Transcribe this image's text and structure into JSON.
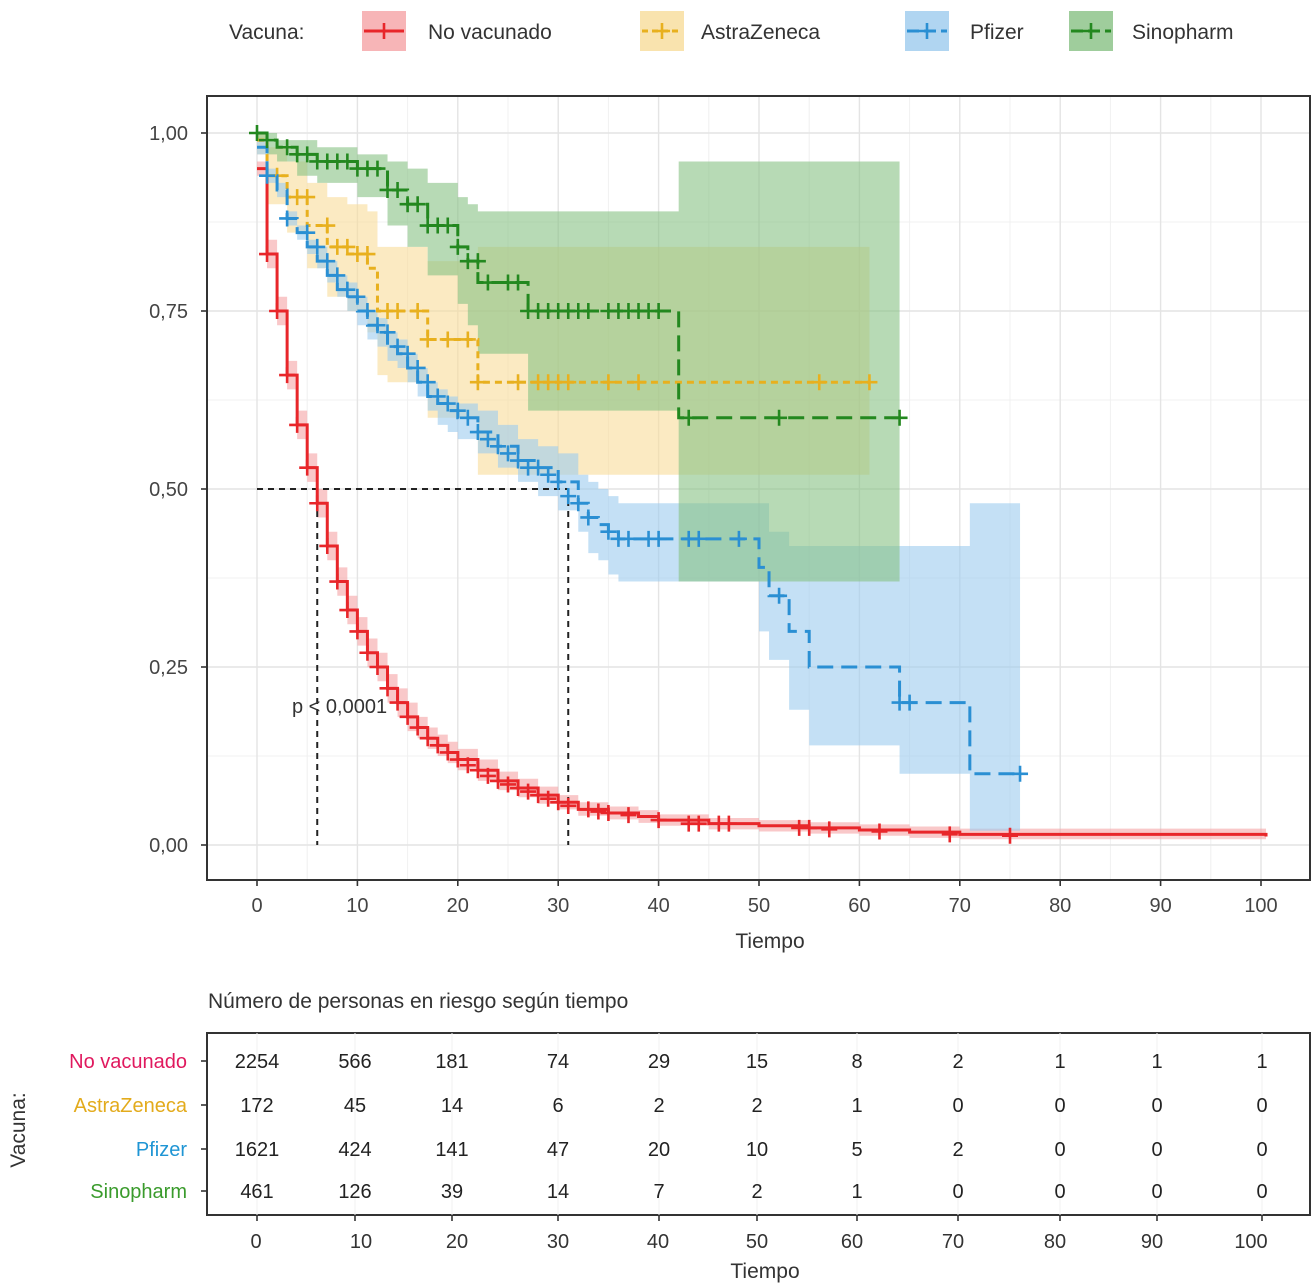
{
  "legend": {
    "title": "Vacuna:",
    "entries": [
      {
        "label": "No vacunado",
        "color": "#e8262a",
        "fill": "#f5a3a5",
        "dash": "solid"
      },
      {
        "label": "AstraZeneca",
        "color": "#e8b01e",
        "fill": "#f8dc9a",
        "dash": "short"
      },
      {
        "label": "Pfizer",
        "color": "#2a8fd3",
        "fill": "#9ccbee",
        "dash": "long"
      },
      {
        "label": "Sinopharm",
        "color": "#23881f",
        "fill": "#87c183",
        "dash": "long"
      }
    ]
  },
  "chart_data": {
    "type": "line",
    "subtype": "kaplan-meier",
    "xlabel": "Tiempo",
    "ylabel": "",
    "xlim": [
      -5,
      105
    ],
    "ylim": [
      -0.05,
      1.05
    ],
    "xticks": [
      0,
      10,
      20,
      30,
      40,
      50,
      60,
      70,
      80,
      90,
      100
    ],
    "yticks": [
      0,
      0.25,
      0.5,
      0.75,
      1.0
    ],
    "ytick_labels": [
      "0,00",
      "0,25",
      "0,50",
      "0,75",
      "1,00"
    ],
    "grid": true,
    "legend_position": "top",
    "annotation": "p < 0,0001",
    "median_lines": [
      {
        "series": "No vacunado",
        "x": 6,
        "y": 0.5
      },
      {
        "series": "Pfizer",
        "x": 31,
        "y": 0.5
      }
    ],
    "series": [
      {
        "name": "No vacunado",
        "x": [
          0,
          1,
          2,
          3,
          4,
          5,
          6,
          7,
          8,
          9,
          10,
          11,
          12,
          13,
          14,
          15,
          16,
          17,
          18,
          19,
          20,
          22,
          24,
          26,
          28,
          30,
          32,
          35,
          38,
          40,
          45,
          50,
          55,
          60,
          65,
          70,
          80,
          90,
          100.5
        ],
        "y": [
          0.95,
          0.83,
          0.75,
          0.66,
          0.59,
          0.53,
          0.48,
          0.42,
          0.37,
          0.33,
          0.3,
          0.27,
          0.25,
          0.22,
          0.2,
          0.18,
          0.165,
          0.15,
          0.14,
          0.13,
          0.12,
          0.105,
          0.09,
          0.08,
          0.07,
          0.06,
          0.05,
          0.045,
          0.04,
          0.035,
          0.03,
          0.027,
          0.024,
          0.021,
          0.018,
          0.015,
          0.015,
          0.015,
          0.012
        ],
        "lower": [
          0.94,
          0.81,
          0.73,
          0.64,
          0.57,
          0.51,
          0.46,
          0.4,
          0.35,
          0.31,
          0.28,
          0.25,
          0.23,
          0.2,
          0.18,
          0.16,
          0.15,
          0.135,
          0.125,
          0.115,
          0.105,
          0.09,
          0.077,
          0.067,
          0.058,
          0.05,
          0.041,
          0.036,
          0.031,
          0.027,
          0.022,
          0.019,
          0.016,
          0.013,
          0.01,
          0.008,
          0.008,
          0.008,
          0.006
        ],
        "upper": [
          0.96,
          0.85,
          0.77,
          0.68,
          0.61,
          0.55,
          0.5,
          0.44,
          0.39,
          0.35,
          0.32,
          0.29,
          0.27,
          0.24,
          0.22,
          0.2,
          0.18,
          0.165,
          0.155,
          0.145,
          0.135,
          0.12,
          0.103,
          0.093,
          0.082,
          0.07,
          0.06,
          0.054,
          0.049,
          0.043,
          0.038,
          0.035,
          0.032,
          0.029,
          0.026,
          0.023,
          0.023,
          0.023,
          0.02
        ],
        "censor_x": [
          1,
          2,
          3,
          4,
          5,
          6,
          7,
          8,
          9,
          10,
          11,
          12,
          13,
          14,
          15,
          16,
          17,
          18,
          19,
          20,
          21,
          22,
          23,
          24,
          25,
          26,
          27,
          28,
          29,
          30,
          31,
          33,
          34,
          35,
          37,
          40,
          43,
          44,
          46,
          47,
          54,
          55,
          57,
          62,
          69,
          75
        ],
        "censor_y": [
          0.83,
          0.75,
          0.66,
          0.59,
          0.53,
          0.48,
          0.42,
          0.37,
          0.33,
          0.3,
          0.27,
          0.25,
          0.22,
          0.2,
          0.18,
          0.165,
          0.15,
          0.14,
          0.13,
          0.12,
          0.112,
          0.105,
          0.097,
          0.09,
          0.085,
          0.08,
          0.075,
          0.07,
          0.065,
          0.06,
          0.055,
          0.05,
          0.047,
          0.045,
          0.042,
          0.035,
          0.03,
          0.03,
          0.03,
          0.03,
          0.024,
          0.024,
          0.022,
          0.019,
          0.015,
          0.013
        ]
      },
      {
        "name": "AstraZeneca",
        "x": [
          0,
          1,
          3,
          5,
          7,
          9,
          11,
          12,
          13,
          17,
          22,
          26,
          30,
          35,
          40,
          45,
          50,
          55,
          61
        ],
        "y": [
          0.99,
          0.94,
          0.91,
          0.87,
          0.84,
          0.83,
          0.81,
          0.75,
          0.75,
          0.71,
          0.65,
          0.65,
          0.65,
          0.65,
          0.65,
          0.65,
          0.65,
          0.65,
          0.65
        ],
        "lower": [
          0.97,
          0.9,
          0.86,
          0.81,
          0.77,
          0.75,
          0.72,
          0.66,
          0.65,
          0.6,
          0.52,
          0.52,
          0.52,
          0.52,
          0.52,
          0.52,
          0.52,
          0.52,
          0.52
        ],
        "upper": [
          1.0,
          0.98,
          0.96,
          0.93,
          0.91,
          0.9,
          0.89,
          0.84,
          0.84,
          0.82,
          0.84,
          0.84,
          0.84,
          0.84,
          0.84,
          0.84,
          0.84,
          0.84,
          0.84
        ],
        "censor_x": [
          2,
          4,
          5,
          7,
          8,
          9,
          10,
          11,
          13,
          14,
          16,
          17,
          19,
          21,
          22,
          26,
          28,
          29,
          30,
          31,
          35,
          38,
          56,
          61
        ],
        "censor_y": [
          0.94,
          0.91,
          0.91,
          0.87,
          0.84,
          0.84,
          0.83,
          0.83,
          0.75,
          0.75,
          0.75,
          0.71,
          0.71,
          0.71,
          0.65,
          0.65,
          0.65,
          0.65,
          0.65,
          0.65,
          0.65,
          0.65,
          0.65,
          0.65
        ]
      },
      {
        "name": "Pfizer",
        "x": [
          0,
          1,
          2,
          3,
          4,
          5,
          6,
          7,
          8,
          9,
          10,
          11,
          12,
          13,
          14,
          15,
          16,
          17,
          18,
          19,
          20,
          22,
          24,
          26,
          28,
          30,
          32,
          33,
          34,
          35,
          36,
          40,
          45,
          50,
          51,
          53,
          55,
          64,
          71,
          76
        ],
        "y": [
          0.98,
          0.94,
          0.92,
          0.88,
          0.86,
          0.84,
          0.82,
          0.8,
          0.78,
          0.77,
          0.75,
          0.73,
          0.72,
          0.7,
          0.69,
          0.67,
          0.65,
          0.63,
          0.62,
          0.61,
          0.6,
          0.58,
          0.56,
          0.54,
          0.53,
          0.51,
          0.48,
          0.46,
          0.45,
          0.44,
          0.43,
          0.43,
          0.43,
          0.39,
          0.35,
          0.3,
          0.25,
          0.2,
          0.1,
          0.1
        ],
        "lower": [
          0.97,
          0.93,
          0.91,
          0.87,
          0.85,
          0.83,
          0.81,
          0.79,
          0.77,
          0.75,
          0.73,
          0.71,
          0.7,
          0.68,
          0.67,
          0.65,
          0.63,
          0.61,
          0.59,
          0.58,
          0.57,
          0.55,
          0.53,
          0.51,
          0.49,
          0.47,
          0.44,
          0.41,
          0.4,
          0.38,
          0.37,
          0.37,
          0.37,
          0.3,
          0.26,
          0.19,
          0.14,
          0.1,
          0.02,
          0.02
        ],
        "upper": [
          0.99,
          0.95,
          0.93,
          0.89,
          0.87,
          0.85,
          0.84,
          0.82,
          0.8,
          0.79,
          0.77,
          0.75,
          0.74,
          0.72,
          0.71,
          0.69,
          0.67,
          0.65,
          0.64,
          0.63,
          0.62,
          0.61,
          0.59,
          0.57,
          0.56,
          0.55,
          0.52,
          0.51,
          0.5,
          0.49,
          0.48,
          0.48,
          0.48,
          0.48,
          0.44,
          0.42,
          0.42,
          0.42,
          0.48,
          0.48
        ],
        "censor_x": [
          1,
          3,
          5,
          6,
          7,
          8,
          9,
          10,
          11,
          12,
          13,
          14,
          15,
          16,
          17,
          18,
          19,
          20,
          21,
          22,
          23,
          24,
          25,
          26,
          27,
          28,
          29,
          30,
          31,
          32,
          33,
          35,
          36,
          37,
          39,
          40,
          43,
          44,
          48,
          52,
          64,
          65,
          76
        ],
        "censor_y": [
          0.94,
          0.88,
          0.86,
          0.84,
          0.82,
          0.8,
          0.78,
          0.77,
          0.75,
          0.73,
          0.72,
          0.7,
          0.69,
          0.67,
          0.65,
          0.63,
          0.62,
          0.61,
          0.6,
          0.58,
          0.57,
          0.56,
          0.55,
          0.54,
          0.53,
          0.53,
          0.52,
          0.51,
          0.49,
          0.48,
          0.46,
          0.44,
          0.43,
          0.43,
          0.43,
          0.43,
          0.43,
          0.43,
          0.43,
          0.35,
          0.2,
          0.2,
          0.1
        ]
      },
      {
        "name": "Sinopharm",
        "x": [
          0,
          1,
          2,
          4,
          6,
          10,
          13,
          15,
          17,
          20,
          21,
          22,
          27,
          42,
          62,
          64
        ],
        "y": [
          1.0,
          0.99,
          0.98,
          0.97,
          0.96,
          0.95,
          0.92,
          0.9,
          0.87,
          0.84,
          0.82,
          0.79,
          0.75,
          0.6,
          0.6,
          0.6
        ],
        "lower": [
          0.99,
          0.97,
          0.96,
          0.94,
          0.93,
          0.91,
          0.87,
          0.84,
          0.8,
          0.76,
          0.73,
          0.69,
          0.61,
          0.37,
          0.37,
          0.37
        ],
        "upper": [
          1.0,
          1.0,
          0.99,
          0.99,
          0.98,
          0.97,
          0.96,
          0.95,
          0.93,
          0.91,
          0.9,
          0.89,
          0.89,
          0.96,
          0.96,
          0.96
        ],
        "censor_x": [
          0,
          1,
          3,
          4,
          5,
          6,
          7,
          8,
          9,
          10,
          11,
          12,
          13,
          14,
          15,
          16,
          17,
          18,
          19,
          20,
          21,
          22,
          23,
          25,
          26,
          27,
          28,
          29,
          30,
          31,
          32,
          33,
          35,
          36,
          37,
          38,
          39,
          40,
          43,
          52,
          64
        ],
        "censor_y": [
          1.0,
          0.99,
          0.98,
          0.97,
          0.97,
          0.96,
          0.96,
          0.96,
          0.96,
          0.95,
          0.95,
          0.95,
          0.92,
          0.92,
          0.9,
          0.9,
          0.87,
          0.87,
          0.87,
          0.84,
          0.82,
          0.82,
          0.79,
          0.79,
          0.79,
          0.75,
          0.75,
          0.75,
          0.75,
          0.75,
          0.75,
          0.75,
          0.75,
          0.75,
          0.75,
          0.75,
          0.75,
          0.75,
          0.6,
          0.6,
          0.6
        ]
      }
    ]
  },
  "risk_table": {
    "title": "Número de personas en riesgo según tiempo",
    "ylabel": "Vacuna:",
    "xlabel": "Tiempo",
    "times": [
      0,
      10,
      20,
      30,
      40,
      50,
      60,
      70,
      80,
      90,
      100
    ],
    "rows": [
      {
        "label": "No vacunado",
        "color": "#e0195e",
        "values": [
          2254,
          566,
          181,
          74,
          29,
          15,
          8,
          2,
          1,
          1,
          1
        ]
      },
      {
        "label": "AstraZeneca",
        "color": "#e3ab1c",
        "values": [
          172,
          45,
          14,
          6,
          2,
          2,
          1,
          0,
          0,
          0,
          0
        ]
      },
      {
        "label": "Pfizer",
        "color": "#1f95d4",
        "values": [
          1621,
          424,
          141,
          47,
          20,
          10,
          5,
          2,
          0,
          0,
          0
        ]
      },
      {
        "label": "Sinopharm",
        "color": "#3a9b2c",
        "values": [
          461,
          126,
          39,
          14,
          7,
          2,
          1,
          0,
          0,
          0,
          0
        ]
      }
    ]
  }
}
